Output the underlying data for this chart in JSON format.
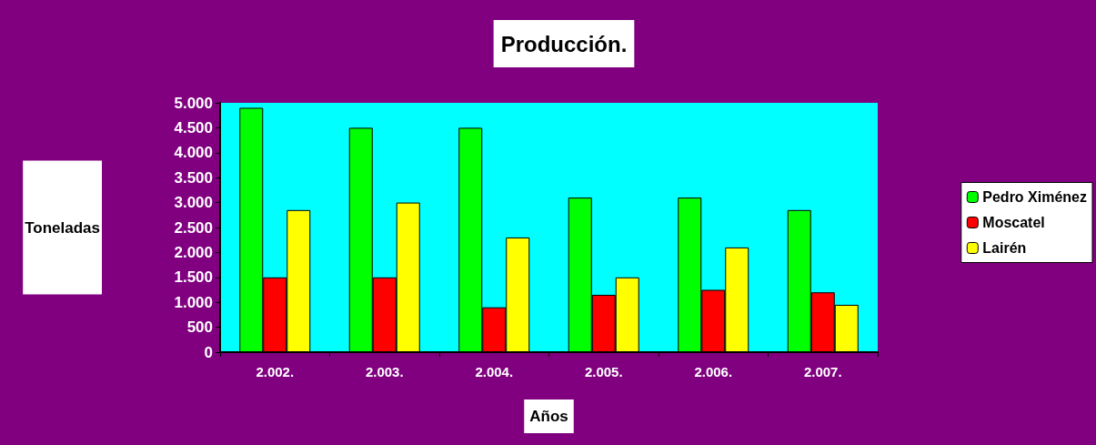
{
  "chart_data": {
    "type": "bar",
    "title": "Producción.",
    "xlabel": "Años",
    "ylabel": "Toneladas",
    "categories": [
      "2.002.",
      "2.003.",
      "2.004.",
      "2.005.",
      "2.006.",
      "2.007."
    ],
    "series": [
      {
        "name": "Pedro Ximénez",
        "color": "#00ff00",
        "values": [
          4900,
          4500,
          4500,
          3100,
          3100,
          2850
        ]
      },
      {
        "name": "Moscatel",
        "color": "#ff0000",
        "values": [
          1500,
          1500,
          900,
          1150,
          1250,
          1200
        ]
      },
      {
        "name": "Lairén",
        "color": "#ffff00",
        "values": [
          2850,
          3000,
          2300,
          1500,
          2100,
          950
        ]
      }
    ],
    "ylim": [
      0,
      5000
    ],
    "yticks": [
      0,
      {
        "value": 500,
        "label": "500"
      },
      {
        "value": 1000,
        "label": "1.000"
      },
      {
        "value": 1500,
        "label": "1.500"
      },
      {
        "value": 2000,
        "label": "2.000"
      },
      {
        "value": 2500,
        "label": "2.500"
      },
      {
        "value": 3000,
        "label": "3.000"
      },
      {
        "value": 3500,
        "label": "3.500"
      },
      {
        "value": 4000,
        "label": "4.000"
      },
      {
        "value": 4500,
        "label": "4.500"
      },
      {
        "value": 5000,
        "label": "5.000"
      }
    ],
    "grid": false,
    "legend": "right"
  }
}
